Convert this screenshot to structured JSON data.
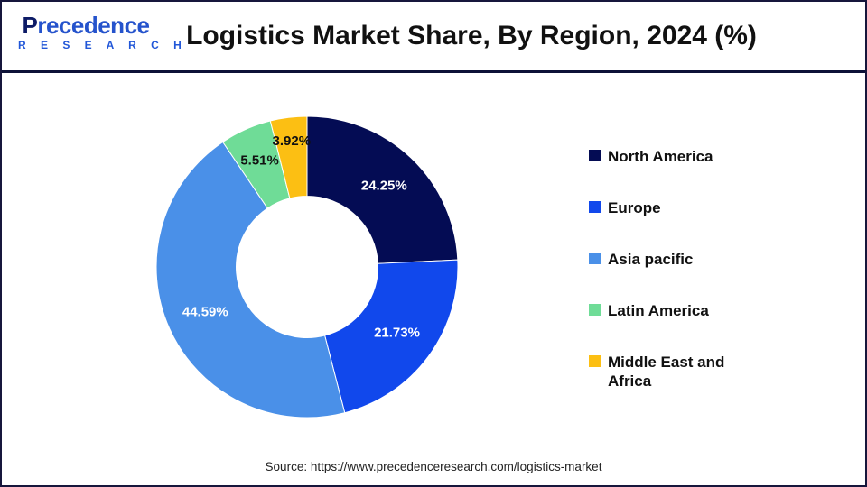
{
  "page": {
    "logo": {
      "initial": "P",
      "main_rest": "recedence",
      "sub": "R E S E A R C H"
    },
    "title": "Logistics Market Share, By Region, 2024 (%)",
    "source": "Source: https://www.precedenceresearch.com/logistics-market"
  },
  "chart_data": {
    "type": "pie",
    "subtype": "donut",
    "title": "Logistics Market Share, By Region, 2024 (%)",
    "unit": "%",
    "categories": [
      "North America",
      "Europe",
      "Asia pacific",
      "Latin America",
      "Middle East and Africa"
    ],
    "values": [
      24.25,
      21.73,
      44.59,
      5.51,
      3.92
    ],
    "data_labels": [
      "24.25%",
      "21.73%",
      "44.59%",
      "5.51%",
      "3.92%"
    ],
    "colors": [
      "#040c54",
      "#1148ec",
      "#4a90e8",
      "#6fdc97",
      "#fcbf13"
    ],
    "data_label_colors": [
      "#ffffff",
      "#ffffff",
      "#ffffff",
      "#111111",
      "#111111"
    ],
    "start_angle_deg": 0,
    "direction": "clockwise",
    "inner_radius_ratio": 0.47,
    "label_radius_factors": [
      0.74,
      0.74,
      0.74,
      0.77,
      0.84
    ],
    "legend_position": "right",
    "legend_marker": "square",
    "grid": false
  }
}
